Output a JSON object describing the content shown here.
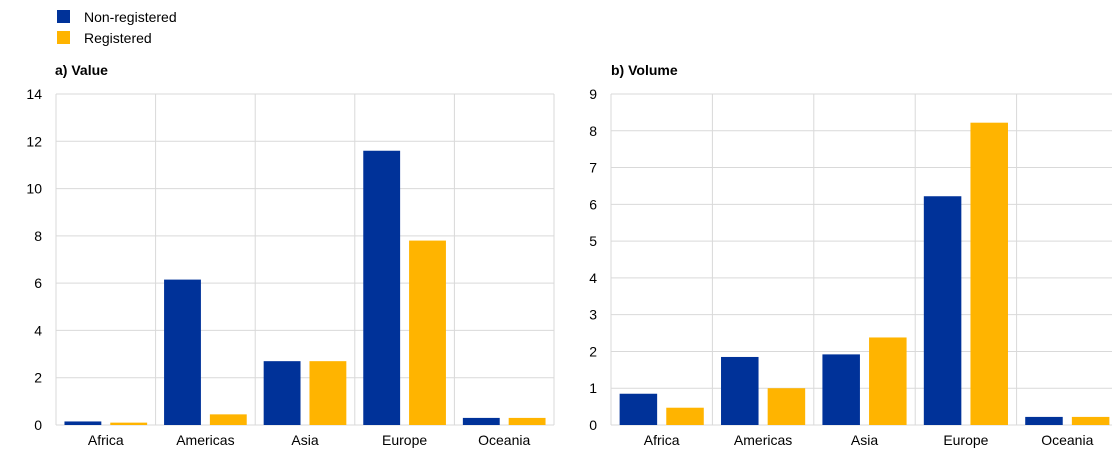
{
  "legend": {
    "items": [
      {
        "label": "Non-registered",
        "color": "#003299"
      },
      {
        "label": "Registered",
        "color": "#FFB400"
      }
    ]
  },
  "chart_data": [
    {
      "type": "bar",
      "title": "a) Value",
      "categories": [
        "Africa",
        "Americas",
        "Asia",
        "Europe",
        "Oceania"
      ],
      "series": [
        {
          "name": "Non-registered",
          "color": "#003299",
          "values": [
            0.15,
            6.15,
            2.7,
            11.6,
            0.3
          ]
        },
        {
          "name": "Registered",
          "color": "#FFB400",
          "values": [
            0.1,
            0.45,
            2.7,
            7.8,
            0.3
          ]
        }
      ],
      "ylim": [
        0,
        14
      ],
      "yticks": [
        0,
        2,
        4,
        6,
        8,
        10,
        12,
        14
      ],
      "grid": true,
      "legend": "top-left"
    },
    {
      "type": "bar",
      "title": "b) Volume",
      "categories": [
        "Africa",
        "Americas",
        "Asia",
        "Europe",
        "Oceania"
      ],
      "series": [
        {
          "name": "Non-registered",
          "color": "#003299",
          "values": [
            0.85,
            1.85,
            1.92,
            6.22,
            0.22
          ]
        },
        {
          "name": "Registered",
          "color": "#FFB400",
          "values": [
            0.47,
            1.0,
            2.38,
            8.22,
            0.22
          ]
        }
      ],
      "ylim": [
        0,
        9
      ],
      "yticks": [
        0,
        1,
        2,
        3,
        4,
        5,
        6,
        7,
        8,
        9
      ],
      "grid": true,
      "legend": "top-left"
    }
  ]
}
